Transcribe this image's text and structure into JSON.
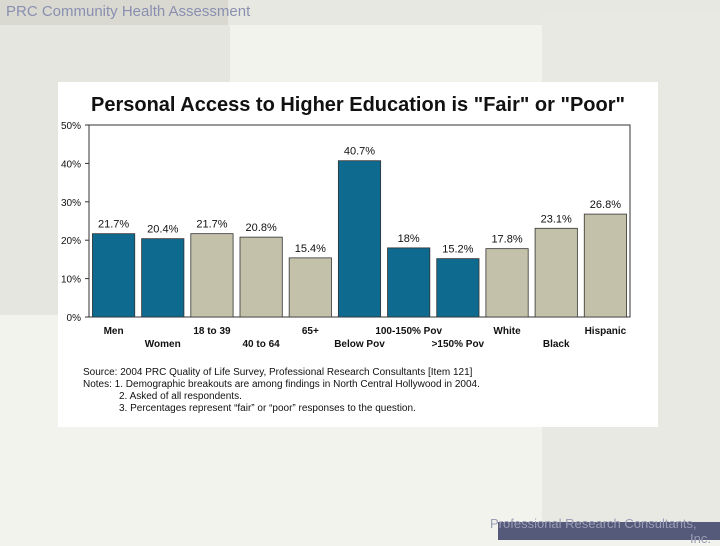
{
  "header": {
    "title": "PRC Community Health Assessment"
  },
  "footer": {
    "line1": "Professional Research Consultants,",
    "line2": "Inc."
  },
  "colors": {
    "blue": "#0f6a8f",
    "tan": "#c3c1a9",
    "header_text": "#8a8fb0",
    "footer_bar": "#55597a"
  },
  "notes": {
    "source": "Source: 2004 PRC Quality of Life Survey, Professional Research Consultants [Item 121]",
    "note1": "Notes:   1.  Demographic breakouts are among findings in North Central Hollywood in 2004.",
    "note2": "2.  Asked of all respondents.",
    "note3": "3.  Percentages represent “fair” or “poor” responses to the question."
  },
  "chart_data": {
    "type": "bar",
    "title": "Personal Access to Higher Education is \"Fair\" or \"Poor\"",
    "xlabel": "",
    "ylabel": "",
    "ylim": [
      0,
      50
    ],
    "yticks": [
      "0%",
      "10%",
      "20%",
      "30%",
      "40%",
      "50%"
    ],
    "grid": false,
    "categories": [
      "Men",
      "Women",
      "18 to 39",
      "40 to 64",
      "65+",
      "Below Pov",
      "100-150% Pov",
      ">150% Pov",
      "White",
      "Black",
      "Hispanic"
    ],
    "values": [
      21.7,
      20.4,
      21.7,
      20.8,
      15.4,
      40.7,
      18,
      15.2,
      17.8,
      23.1,
      26.8
    ],
    "value_labels": [
      "21.7%",
      "20.4%",
      "21.7%",
      "20.8%",
      "15.4%",
      "40.7%",
      "18%",
      "15.2%",
      "17.8%",
      "23.1%",
      "26.8%"
    ],
    "bar_colors": [
      "blue",
      "blue",
      "tan",
      "tan",
      "tan",
      "blue",
      "blue",
      "blue",
      "tan",
      "tan",
      "tan"
    ]
  }
}
